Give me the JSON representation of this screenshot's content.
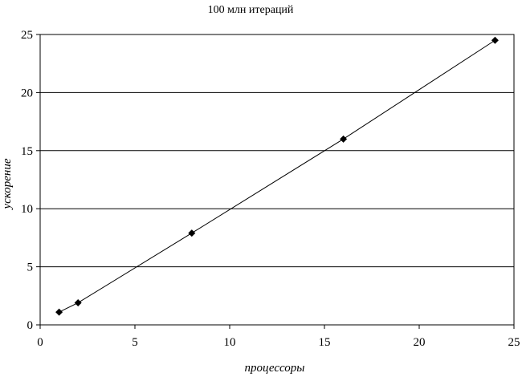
{
  "chart_data": {
    "type": "line",
    "title": "100 млн итераций",
    "xlabel": "процессоры",
    "ylabel": "ускорение",
    "xlim": [
      0,
      25
    ],
    "ylim": [
      0,
      25
    ],
    "xticks": [
      0,
      5,
      10,
      15,
      20,
      25
    ],
    "yticks": [
      0,
      5,
      10,
      15,
      20,
      25
    ],
    "grid": "horizontal",
    "legend": "none",
    "series": [
      {
        "marker": "diamond",
        "color": "#000000",
        "points": [
          {
            "x": 1,
            "y": 1.1
          },
          {
            "x": 2,
            "y": 1.9
          },
          {
            "x": 8,
            "y": 7.9
          },
          {
            "x": 16,
            "y": 16.0
          },
          {
            "x": 24,
            "y": 24.5
          }
        ]
      }
    ]
  }
}
